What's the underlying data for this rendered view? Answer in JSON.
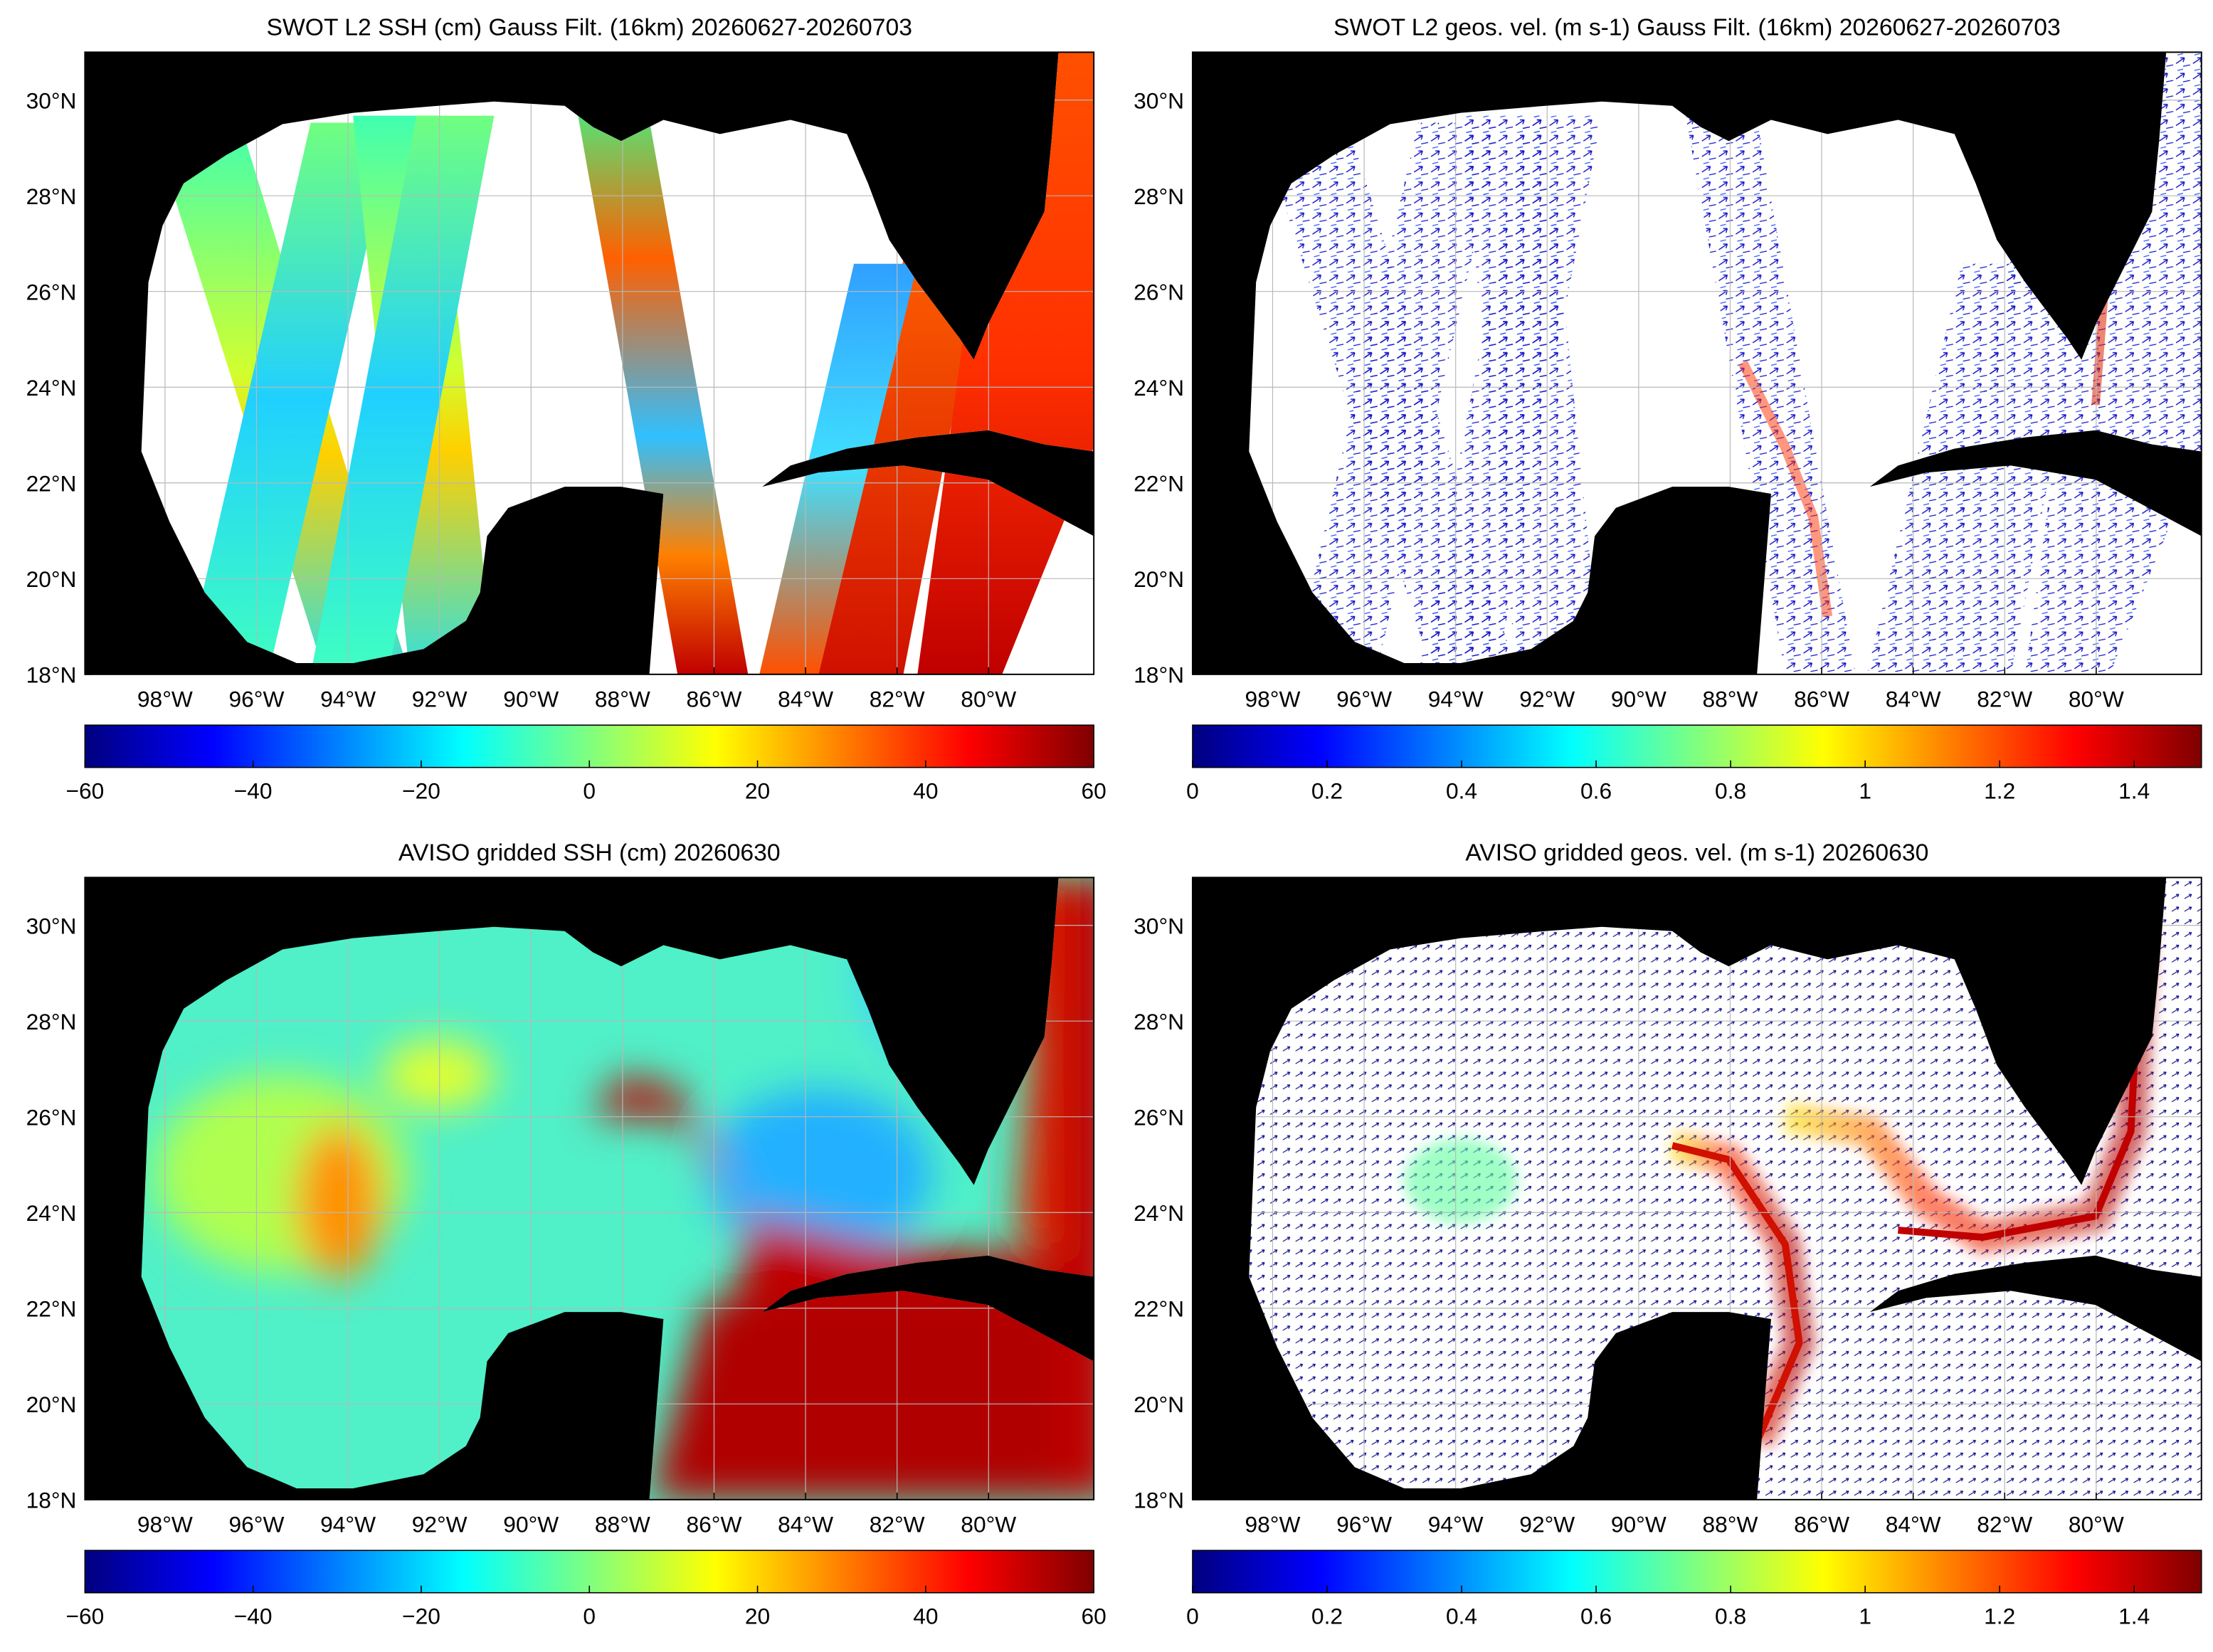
{
  "chart_data": [
    {
      "type": "map",
      "title": "SWOT L2 SSH (cm) Gauss Filt. (16km) 20260627-20260703",
      "xlim": [
        -99.75,
        -77.7
      ],
      "ylim": [
        18,
        31
      ],
      "xticks": [
        {
          "value": -98,
          "label": "98°W"
        },
        {
          "value": -96,
          "label": "96°W"
        },
        {
          "value": -94,
          "label": "94°W"
        },
        {
          "value": -92,
          "label": "92°W"
        },
        {
          "value": -90,
          "label": "90°W"
        },
        {
          "value": -88,
          "label": "88°W"
        },
        {
          "value": -86,
          "label": "86°W"
        },
        {
          "value": -84,
          "label": "84°W"
        },
        {
          "value": -82,
          "label": "82°W"
        },
        {
          "value": -80,
          "label": "80°W"
        }
      ],
      "yticks": [
        {
          "value": 18,
          "label": "18°N"
        },
        {
          "value": 20,
          "label": "20°N"
        },
        {
          "value": 22,
          "label": "22°N"
        },
        {
          "value": 24,
          "label": "24°N"
        },
        {
          "value": 26,
          "label": "26°N"
        },
        {
          "value": 28,
          "label": "28°N"
        },
        {
          "value": 30,
          "label": "30°N"
        }
      ],
      "grid": true,
      "colorbar": {
        "colormap": "jet",
        "clim": [
          -60,
          60
        ],
        "ticks": [
          {
            "value": -60,
            "label": "−60"
          },
          {
            "value": -40,
            "label": "−40"
          },
          {
            "value": -20,
            "label": "−20"
          },
          0,
          20,
          40,
          60
        ]
      }
    },
    {
      "type": "map",
      "title": "SWOT L2 geos. vel. (m s-1) Gauss Filt. (16km) 20260627-20260703",
      "xlim": [
        -99.75,
        -77.7
      ],
      "ylim": [
        18,
        31
      ],
      "xticks": [
        {
          "value": -98,
          "label": "98°W"
        },
        {
          "value": -96,
          "label": "96°W"
        },
        {
          "value": -94,
          "label": "94°W"
        },
        {
          "value": -92,
          "label": "92°W"
        },
        {
          "value": -90,
          "label": "90°W"
        },
        {
          "value": -88,
          "label": "88°W"
        },
        {
          "value": -86,
          "label": "86°W"
        },
        {
          "value": -84,
          "label": "84°W"
        },
        {
          "value": -82,
          "label": "82°W"
        },
        {
          "value": -80,
          "label": "80°W"
        }
      ],
      "yticks": [
        {
          "value": 18,
          "label": "18°N"
        },
        {
          "value": 20,
          "label": "20°N"
        },
        {
          "value": 22,
          "label": "22°N"
        },
        {
          "value": 24,
          "label": "24°N"
        },
        {
          "value": 26,
          "label": "26°N"
        },
        {
          "value": 28,
          "label": "28°N"
        },
        {
          "value": 30,
          "label": "30°N"
        }
      ],
      "grid": true,
      "colorbar": {
        "colormap": "jet",
        "clim": [
          0,
          1.5
        ],
        "ticks": [
          0,
          0.2,
          0.4,
          0.6,
          0.8,
          1,
          1.2,
          1.4
        ]
      }
    },
    {
      "type": "map",
      "title": "AVISO gridded SSH (cm) 20260630",
      "xlim": [
        -99.75,
        -77.7
      ],
      "ylim": [
        18,
        31
      ],
      "xticks": [
        {
          "value": -98,
          "label": "98°W"
        },
        {
          "value": -96,
          "label": "96°W"
        },
        {
          "value": -94,
          "label": "94°W"
        },
        {
          "value": -92,
          "label": "92°W"
        },
        {
          "value": -90,
          "label": "90°W"
        },
        {
          "value": -88,
          "label": "88°W"
        },
        {
          "value": -86,
          "label": "86°W"
        },
        {
          "value": -84,
          "label": "84°W"
        },
        {
          "value": -82,
          "label": "82°W"
        },
        {
          "value": -80,
          "label": "80°W"
        }
      ],
      "yticks": [
        {
          "value": 18,
          "label": "18°N"
        },
        {
          "value": 20,
          "label": "20°N"
        },
        {
          "value": 22,
          "label": "22°N"
        },
        {
          "value": 24,
          "label": "24°N"
        },
        {
          "value": 26,
          "label": "26°N"
        },
        {
          "value": 28,
          "label": "28°N"
        },
        {
          "value": 30,
          "label": "30°N"
        }
      ],
      "grid": true,
      "colorbar": {
        "colormap": "jet",
        "clim": [
          -60,
          60
        ],
        "ticks": [
          {
            "value": -60,
            "label": "−60"
          },
          {
            "value": -40,
            "label": "−40"
          },
          {
            "value": -20,
            "label": "−20"
          },
          0,
          20,
          40,
          60
        ]
      }
    },
    {
      "type": "map",
      "title": "AVISO gridded geos. vel. (m s-1)  20260630",
      "xlim": [
        -99.75,
        -77.7
      ],
      "ylim": [
        18,
        31
      ],
      "xticks": [
        {
          "value": -98,
          "label": "98°W"
        },
        {
          "value": -96,
          "label": "96°W"
        },
        {
          "value": -94,
          "label": "94°W"
        },
        {
          "value": -92,
          "label": "92°W"
        },
        {
          "value": -90,
          "label": "90°W"
        },
        {
          "value": -88,
          "label": "88°W"
        },
        {
          "value": -86,
          "label": "86°W"
        },
        {
          "value": -84,
          "label": "84°W"
        },
        {
          "value": -82,
          "label": "82°W"
        },
        {
          "value": -80,
          "label": "80°W"
        }
      ],
      "yticks": [
        {
          "value": 18,
          "label": "18°N"
        },
        {
          "value": 20,
          "label": "20°N"
        },
        {
          "value": 22,
          "label": "22°N"
        },
        {
          "value": 24,
          "label": "24°N"
        },
        {
          "value": 26,
          "label": "26°N"
        },
        {
          "value": 28,
          "label": "28°N"
        },
        {
          "value": 30,
          "label": "30°N"
        }
      ],
      "grid": true,
      "colorbar": {
        "colormap": "jet",
        "clim": [
          0,
          1.5
        ],
        "ticks": [
          0,
          0.2,
          0.4,
          0.6,
          0.8,
          1,
          1.2,
          1.4
        ]
      }
    }
  ]
}
